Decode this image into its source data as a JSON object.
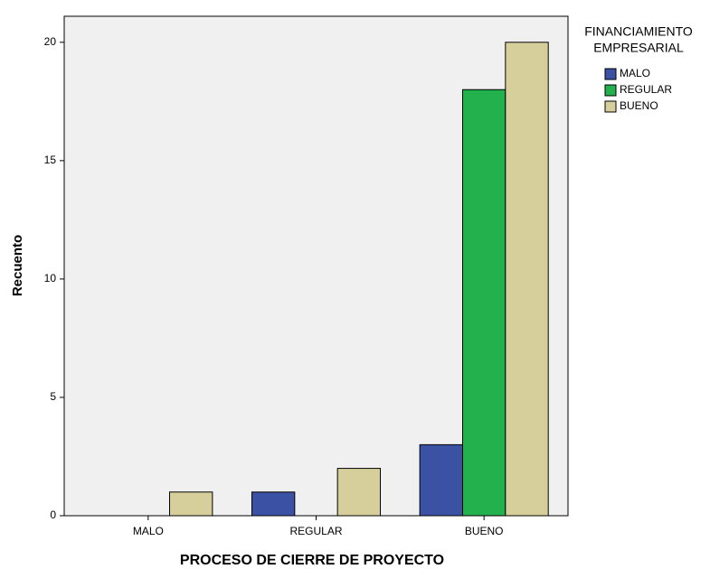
{
  "chart_data": {
    "type": "bar",
    "x_label": "PROCESO DE CIERRE DE PROYECTO",
    "y_label": "Recuento",
    "legend_title": [
      "FINANCIAMIENTO",
      "EMPRESARIAL"
    ],
    "legend_position": "right",
    "categories": [
      "MALO",
      "REGULAR",
      "BUENO"
    ],
    "series": [
      {
        "name": "MALO",
        "color": "#3b51a3",
        "values": [
          0,
          1,
          3
        ]
      },
      {
        "name": "REGULAR",
        "color": "#22b14c",
        "values": [
          0,
          0,
          18
        ]
      },
      {
        "name": "BUENO",
        "color": "#d7cf9b",
        "values": [
          1,
          2,
          20
        ]
      }
    ],
    "ylim": [
      0,
      21.1
    ],
    "yticks": [
      0,
      5,
      10,
      15,
      20
    ],
    "grid": false
  }
}
